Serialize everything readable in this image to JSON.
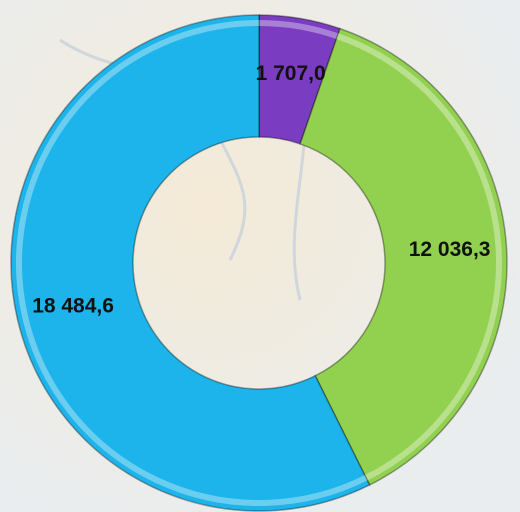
{
  "chart_data": {
    "type": "donut",
    "categories": [
      null,
      null,
      null
    ],
    "values": [
      1707.0,
      12036.3,
      18484.6
    ],
    "value_labels": [
      "1 707,0",
      "12 036,3",
      "18 484,6"
    ],
    "colors": [
      "#7a3cc0",
      "#92d050",
      "#1cb4ea"
    ]
  }
}
